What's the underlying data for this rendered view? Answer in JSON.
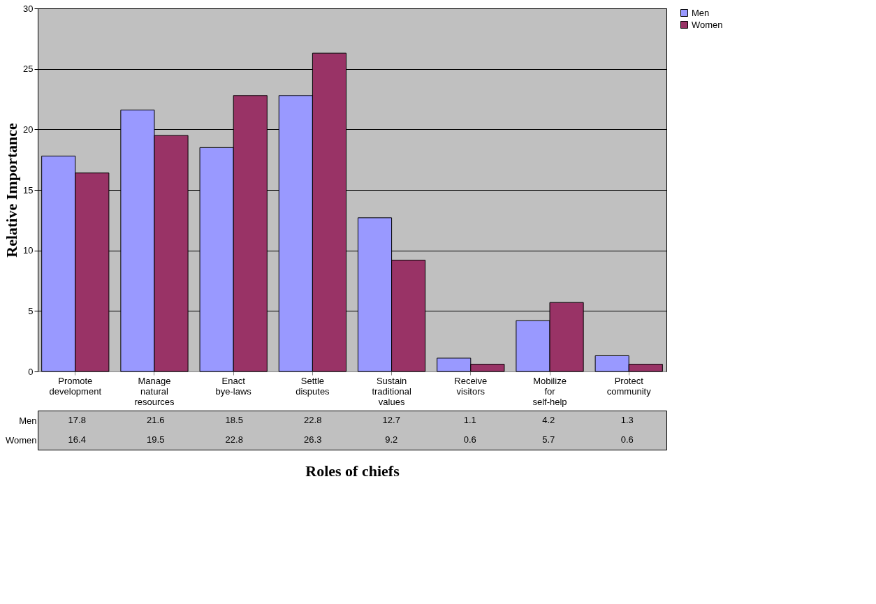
{
  "chart_data": {
    "type": "bar",
    "xlabel": "Roles of chiefs",
    "ylabel": "Relative Importance",
    "categories": [
      "Promote development",
      "Manage natural resources",
      "Enact bye-laws",
      "Settle disputes",
      "Sustain traditional values",
      "Receive visitors",
      "Mobilize for self-help",
      "Protect community"
    ],
    "series": [
      {
        "name": "Men",
        "color": "#9999ff",
        "values": [
          17.8,
          21.6,
          18.5,
          22.8,
          12.7,
          1.1,
          4.2,
          1.3
        ]
      },
      {
        "name": "Women",
        "color": "#993366",
        "values": [
          16.4,
          19.5,
          22.8,
          26.3,
          9.2,
          0.6,
          5.7,
          0.6
        ]
      }
    ],
    "ylim": [
      0,
      30
    ],
    "yticks": [
      0,
      5,
      10,
      15,
      20,
      25,
      30
    ],
    "grid": "y",
    "legend": "right",
    "data_labels": true
  }
}
